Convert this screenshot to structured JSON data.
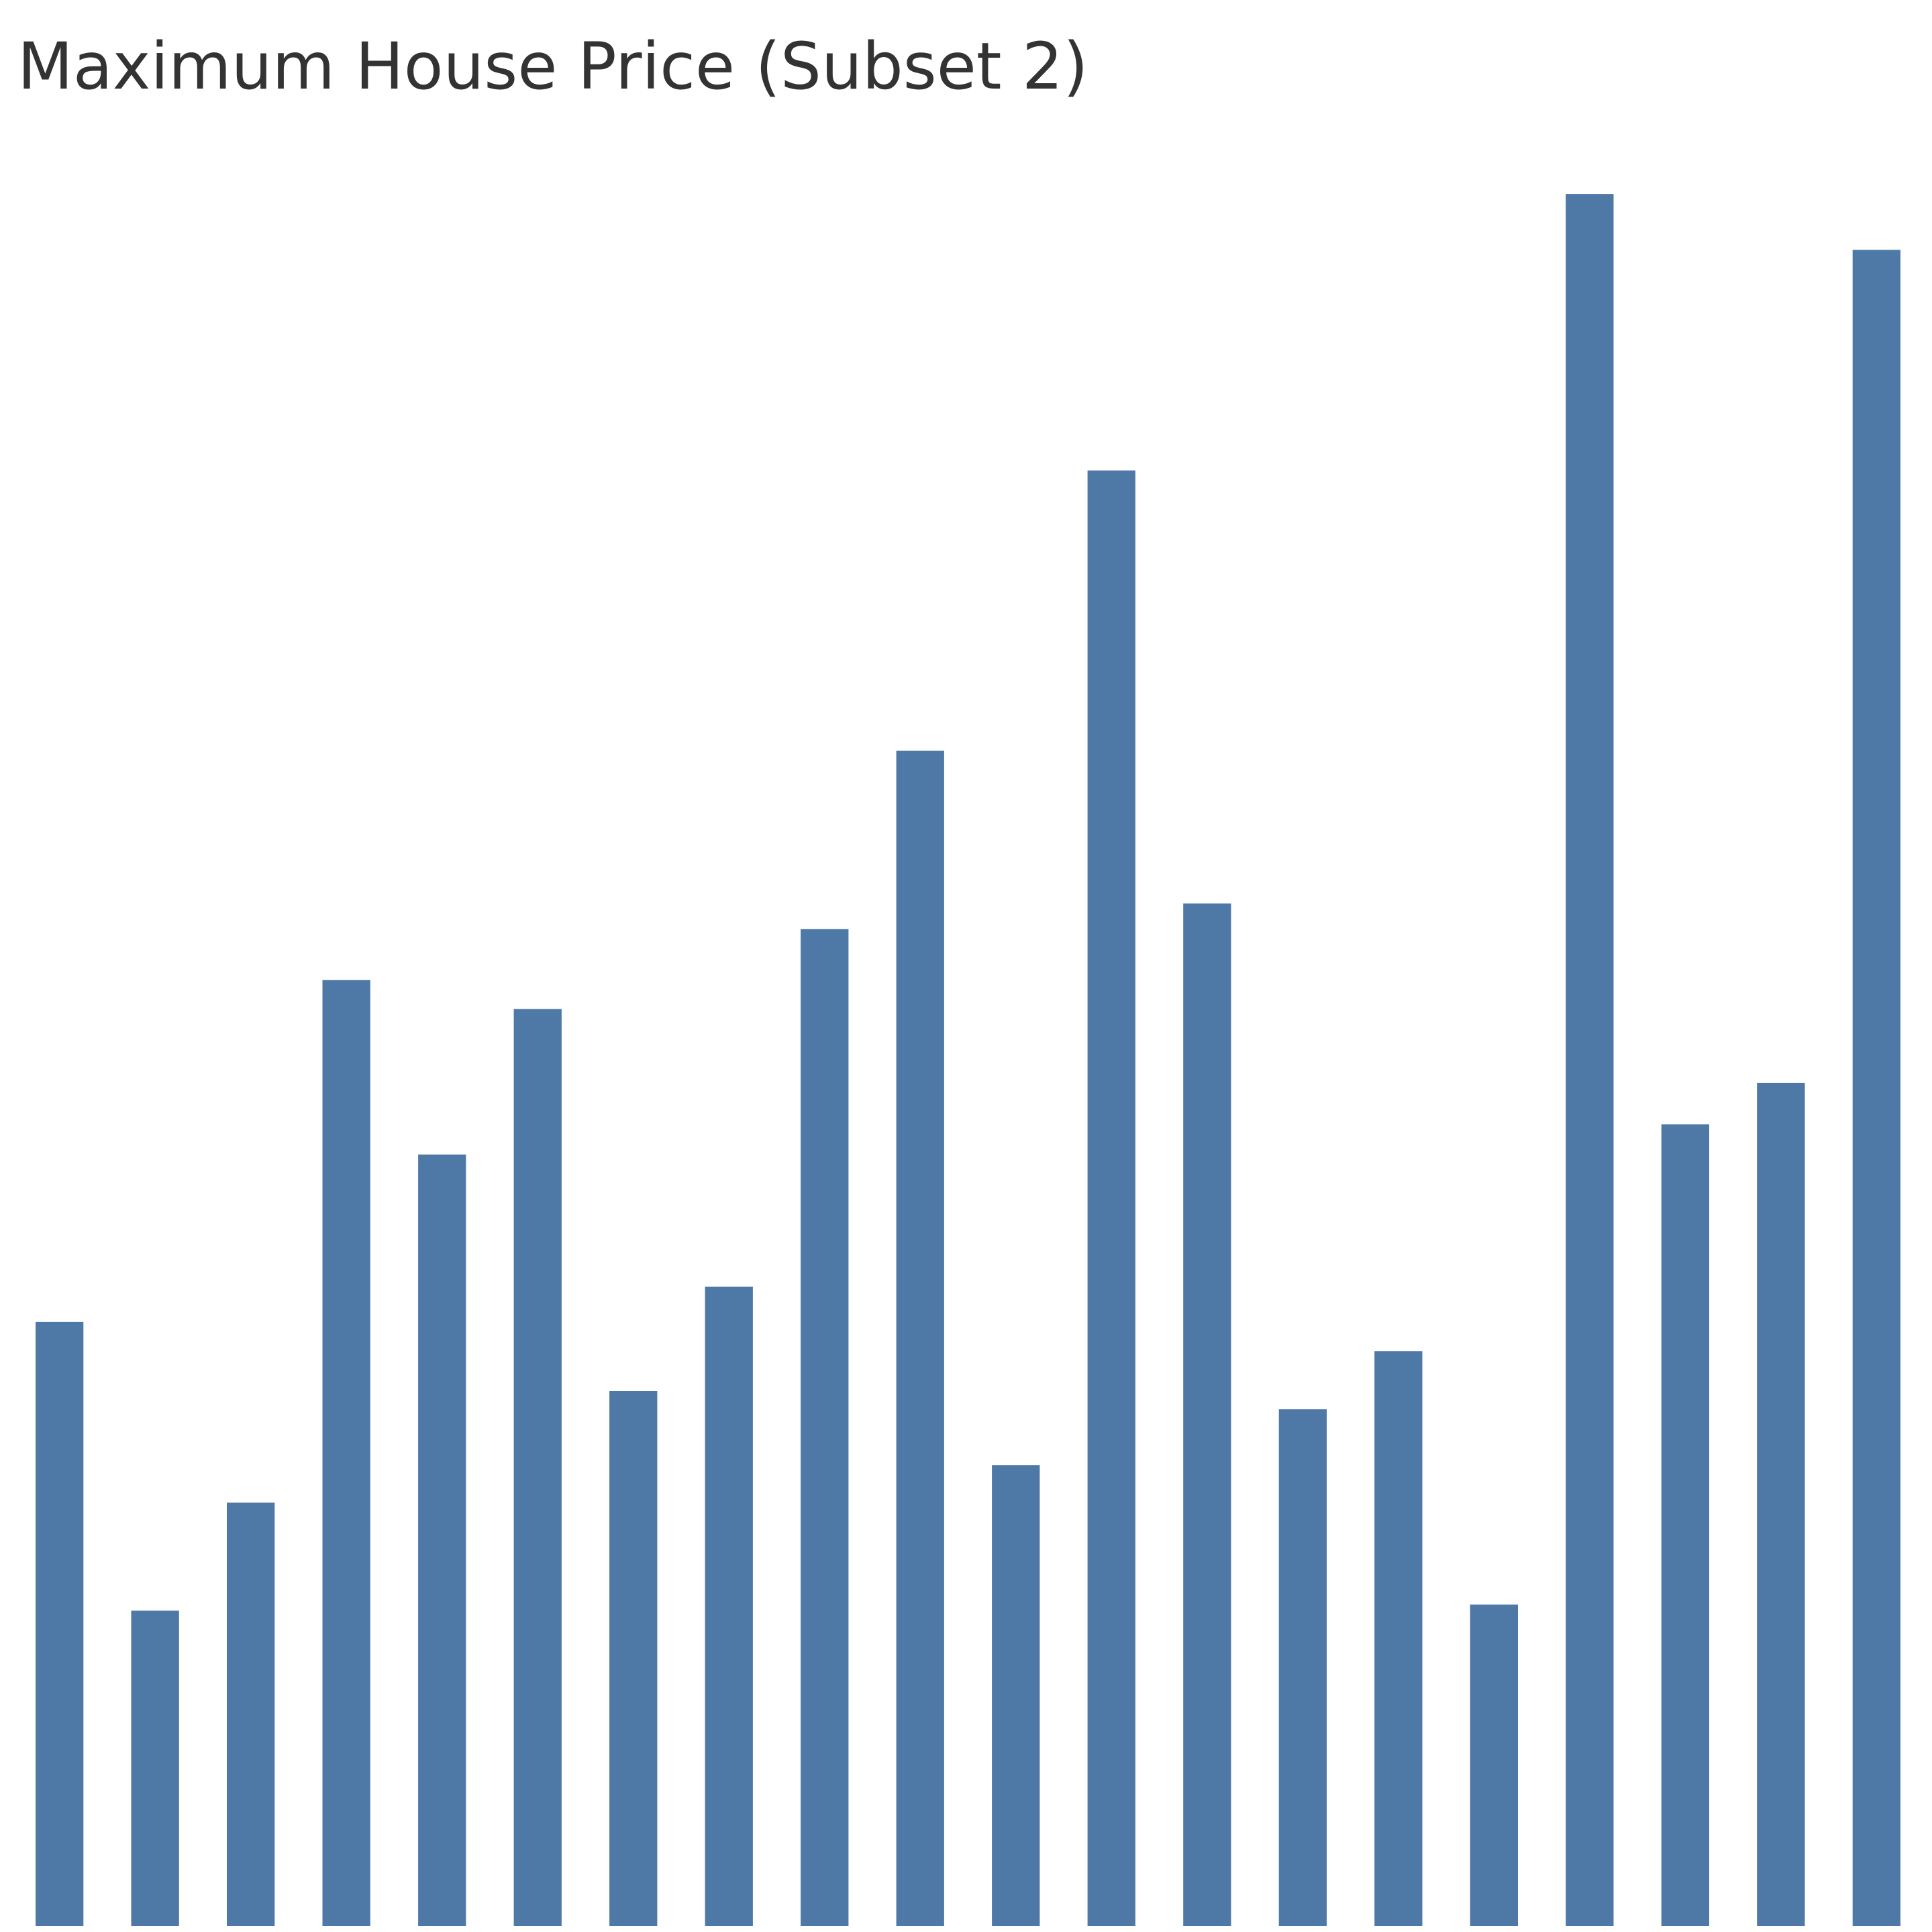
{
  "chart_data": {
    "type": "bar",
    "title": "Maximum House Price (Subset 2)",
    "xlabel": "",
    "ylabel": "",
    "categories": [
      "",
      "",
      "",
      "",
      "",
      "",
      "",
      "",
      "",
      "",
      "",
      "",
      "",
      "",
      "",
      "",
      "",
      "",
      "",
      ""
    ],
    "values": [
      49.8,
      26.0,
      34.9,
      78.0,
      63.6,
      75.6,
      44.1,
      52.7,
      82.2,
      96.9,
      38.0,
      120.0,
      84.3,
      42.6,
      47.4,
      26.5,
      142.8,
      66.1,
      69.5,
      138.2
    ],
    "ylim": [
      0,
      150
    ],
    "grid": false,
    "legend": "none",
    "bar_color": "#4e79a7"
  }
}
